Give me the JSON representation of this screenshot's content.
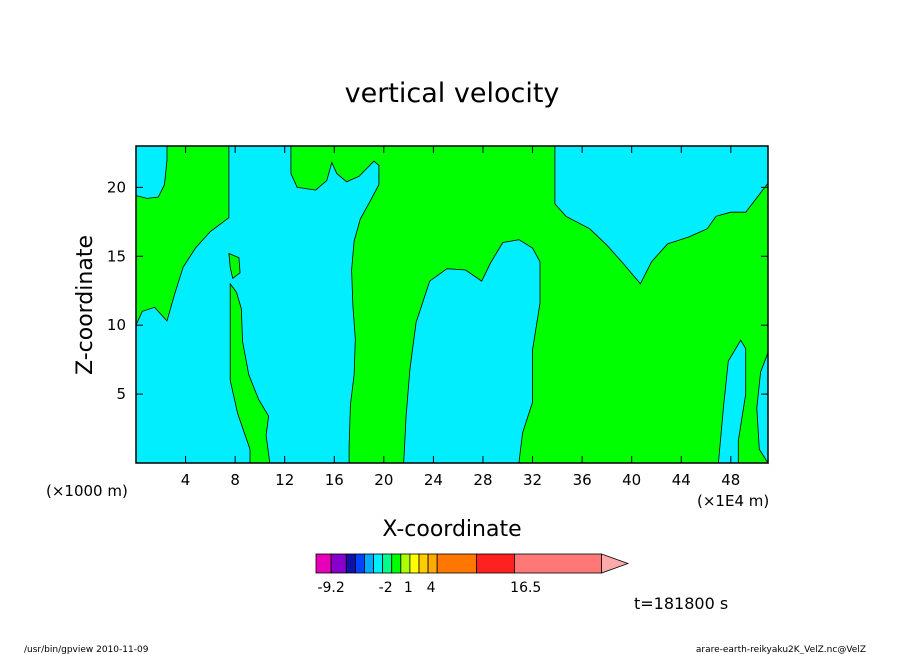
{
  "chart_data": {
    "type": "heatmap",
    "title": "vertical velocity",
    "xlabel": "X-coordinate",
    "ylabel": "Z-coordinate",
    "x_unit": "(×1000 m)",
    "x_unit_extra": "(×1E4 m)",
    "xlim": [
      0,
      51
    ],
    "ylim": [
      0,
      23
    ],
    "x_ticks": [
      4,
      8,
      12,
      16,
      20,
      24,
      28,
      32,
      36,
      40,
      44,
      48
    ],
    "y_ticks": [
      5,
      10,
      15,
      20
    ],
    "colors": {
      "positive": "#00ff00",
      "negative": "#00eeff"
    },
    "colorbar": {
      "tick_labels": [
        {
          "value": -9.2,
          "label": "-9.2"
        },
        {
          "value": -2,
          "label": "-2"
        },
        {
          "value": 1,
          "label": "1"
        },
        {
          "value": 4,
          "label": "4"
        },
        {
          "value": 16.5,
          "label": "16.5"
        }
      ],
      "segments": [
        {
          "from": -11.2,
          "to": -9.2,
          "color": "#e800b8"
        },
        {
          "from": -9.2,
          "to": -7.2,
          "color": "#8800cc"
        },
        {
          "from": -7.2,
          "to": -6.0,
          "color": "#1010aa"
        },
        {
          "from": -6.0,
          "to": -4.8,
          "color": "#0044ff"
        },
        {
          "from": -4.8,
          "to": -3.6,
          "color": "#00aaff"
        },
        {
          "from": -3.6,
          "to": -2.4,
          "color": "#00eeff"
        },
        {
          "from": -2.4,
          "to": -1.2,
          "color": "#00ff88"
        },
        {
          "from": -1.2,
          "to": 0,
          "color": "#00ff00"
        },
        {
          "from": 0,
          "to": 1.2,
          "color": "#aaff00"
        },
        {
          "from": 1.2,
          "to": 2.4,
          "color": "#ffff00"
        },
        {
          "from": 2.4,
          "to": 3.6,
          "color": "#ffcc00"
        },
        {
          "from": 3.6,
          "to": 4.8,
          "color": "#ffaa00"
        },
        {
          "from": 4.8,
          "to": 10.0,
          "color": "#ff7700"
        },
        {
          "from": 10.0,
          "to": 15.0,
          "color": "#ff2020"
        },
        {
          "from": 15.0,
          "to": 26.5,
          "color": "#ff7777"
        },
        {
          "from": 26.5,
          "to": 30.0,
          "color": "#ffaaaa"
        }
      ]
    },
    "regions": [
      {
        "name": "negative-region-1",
        "sign": "negative",
        "outline": [
          [
            0,
            23
          ],
          [
            2.5,
            23
          ],
          [
            2.5,
            22
          ],
          [
            2.3,
            20.2
          ],
          [
            1.8,
            19.3
          ],
          [
            0.9,
            19.2
          ],
          [
            0,
            19.4
          ],
          [
            0,
            23
          ]
        ]
      },
      {
        "name": "negative-region-2",
        "sign": "negative",
        "outline": [
          [
            0,
            10
          ],
          [
            0.5,
            11
          ],
          [
            1.5,
            11.3
          ],
          [
            2.5,
            10.3
          ],
          [
            3.1,
            12.2
          ],
          [
            3.8,
            14.2
          ],
          [
            4.8,
            15.6
          ],
          [
            6.0,
            16.8
          ],
          [
            7.5,
            17.8
          ],
          [
            7.5,
            23
          ],
          [
            12.5,
            23
          ],
          [
            12.5,
            21
          ],
          [
            13.0,
            20.0
          ],
          [
            14.5,
            19.8
          ],
          [
            15.4,
            20.5
          ],
          [
            15.8,
            21.8
          ],
          [
            16.2,
            21.0
          ],
          [
            17.0,
            20.4
          ],
          [
            18.0,
            20.8
          ],
          [
            19.2,
            21.9
          ],
          [
            19.6,
            21.6
          ],
          [
            19.6,
            20.2
          ],
          [
            18.9,
            19.0
          ],
          [
            18.1,
            17.7
          ],
          [
            17.6,
            16.1
          ],
          [
            17.4,
            14.0
          ],
          [
            17.5,
            11.4
          ],
          [
            17.7,
            9.0
          ],
          [
            17.6,
            6.4
          ],
          [
            17.3,
            4.2
          ],
          [
            17.2,
            1.2
          ],
          [
            17.2,
            0
          ],
          [
            10.8,
            0
          ],
          [
            10.5,
            2.0
          ],
          [
            10.7,
            3.4
          ],
          [
            9.9,
            4.6
          ],
          [
            9.1,
            6.4
          ],
          [
            8.6,
            8.8
          ],
          [
            8.5,
            11.2
          ],
          [
            8.1,
            12.4
          ],
          [
            7.6,
            13.0
          ],
          [
            7.6,
            10.6
          ],
          [
            7.6,
            6.0
          ],
          [
            8.2,
            3.6
          ],
          [
            9.2,
            1.0
          ],
          [
            9.2,
            0
          ],
          [
            0,
            0
          ],
          [
            0,
            10
          ]
        ]
      },
      {
        "name": "negative-region-3",
        "sign": "negative",
        "outline": [
          [
            21.6,
            0
          ],
          [
            21.8,
            3.4
          ],
          [
            22.1,
            6.8
          ],
          [
            22.6,
            10.2
          ],
          [
            23.7,
            13.2
          ],
          [
            25.1,
            14.1
          ],
          [
            26.6,
            14.0
          ],
          [
            27.9,
            13.2
          ],
          [
            28.6,
            14.5
          ],
          [
            29.6,
            16.0
          ],
          [
            30.9,
            16.2
          ],
          [
            32.0,
            15.6
          ],
          [
            32.6,
            14.6
          ],
          [
            32.6,
            11.6
          ],
          [
            32.0,
            8.2
          ],
          [
            32.0,
            4.4
          ],
          [
            31.2,
            2.2
          ],
          [
            30.9,
            0
          ],
          [
            21.6,
            0
          ]
        ]
      },
      {
        "name": "negative-region-4",
        "sign": "negative",
        "outline": [
          [
            33.8,
            23
          ],
          [
            33.8,
            18.8
          ],
          [
            34.7,
            17.9
          ],
          [
            36.6,
            17.0
          ],
          [
            38.0,
            15.8
          ],
          [
            39.3,
            14.5
          ],
          [
            40.7,
            13.0
          ],
          [
            41.6,
            14.6
          ],
          [
            42.9,
            15.9
          ],
          [
            44.6,
            16.4
          ],
          [
            46.1,
            17.0
          ],
          [
            46.8,
            17.9
          ],
          [
            48.0,
            18.2
          ],
          [
            49.2,
            18.2
          ],
          [
            51,
            20.3
          ],
          [
            51,
            23
          ],
          [
            33.8,
            23
          ]
        ]
      },
      {
        "name": "negative-region-5",
        "sign": "negative",
        "outline": [
          [
            47.0,
            0
          ],
          [
            47.4,
            4.0
          ],
          [
            47.8,
            7.4
          ],
          [
            48.8,
            8.9
          ],
          [
            49.2,
            8.3
          ],
          [
            49.2,
            5.0
          ],
          [
            48.6,
            1.6
          ],
          [
            48.6,
            0
          ],
          [
            47.0,
            0
          ]
        ]
      },
      {
        "name": "negative-region-6",
        "sign": "negative",
        "outline": [
          [
            51,
            0
          ],
          [
            51,
            8.0
          ],
          [
            50.4,
            6.6
          ],
          [
            50.1,
            4.0
          ],
          [
            50.3,
            1.0
          ],
          [
            51,
            0
          ]
        ]
      },
      {
        "name": "positive-island-1",
        "sign": "positive",
        "outline": [
          [
            7.5,
            15.2
          ],
          [
            8.3,
            14.9
          ],
          [
            8.4,
            13.8
          ],
          [
            7.8,
            13.4
          ],
          [
            7.6,
            14.2
          ],
          [
            7.5,
            15.2
          ]
        ]
      }
    ],
    "time_label": "t=181800 s"
  },
  "footer": {
    "left": "/usr/bin/gpview   2010-11-09",
    "right": "arare-earth-reikyaku2K_VelZ.nc@VelZ"
  }
}
